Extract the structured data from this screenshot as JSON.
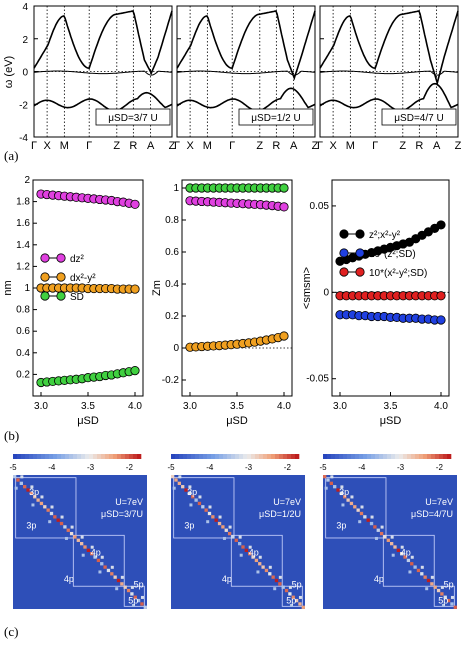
{
  "panel_labels": {
    "a": "(a)",
    "b": "(b)",
    "c": "(c)"
  },
  "row_a": {
    "y_axis_label": "ω (eV)",
    "y_ticks": [
      "4",
      "2",
      "0",
      "-2",
      "-4"
    ],
    "k_labels": [
      "Γ",
      "X",
      "M",
      "Γ",
      "Z",
      "R",
      "A",
      "Z"
    ],
    "panels": [
      {
        "mu_label": "μSD=3/7 U"
      },
      {
        "mu_label": "μSD=1/2 U"
      },
      {
        "mu_label": "μSD=4/7 U"
      }
    ]
  },
  "row_b": {
    "x_axis_label": "μSD",
    "x_ticks": [
      "3.0",
      "3.5",
      "4.0"
    ],
    "panels": [
      {
        "y_axis_label": "nm",
        "y_ticks": [
          "0.2",
          "0.4",
          "0.6",
          "0.8",
          "1",
          "1.2",
          "1.4",
          "1.6",
          "1.8",
          "2"
        ],
        "legend": [
          {
            "label": "dz²",
            "color": "#e040e0"
          },
          {
            "label": "dx²-y²",
            "color": "#f0a020"
          },
          {
            "label": "SD",
            "color": "#40d040"
          }
        ]
      },
      {
        "y_axis_label": "Zm",
        "y_ticks": [
          "-0.2",
          "0",
          "0.2",
          "0.4",
          "0.6",
          "0.8",
          "1"
        ]
      },
      {
        "y_axis_label": "<smsm>",
        "y_ticks": [
          "-0.05",
          "0",
          "0.05"
        ],
        "legend": [
          {
            "label": "z²;x²-y²",
            "color": "#000000"
          },
          {
            "label": "10*(z²;SD)",
            "color": "#2040e0"
          },
          {
            "label": "10*(x²-y²;SD)",
            "color": "#e02020"
          }
        ]
      }
    ]
  },
  "row_c": {
    "colorbar_ticks": [
      "-5",
      "-4",
      "-3",
      "-2"
    ],
    "panels": [
      {
        "u_label": "U=7eV",
        "mu_label": "μSD=3/7U"
      },
      {
        "u_label": "U=7eV",
        "mu_label": "μSD=1/2U"
      },
      {
        "u_label": "U=7eV",
        "mu_label": "μSD=4/7U"
      }
    ],
    "block_labels": [
      "3p",
      "3p",
      "4p",
      "4p",
      "5p",
      "5p"
    ]
  },
  "chart_data": [
    {
      "type": "scatter",
      "title": "",
      "xlabel": "μSD",
      "ylabel": "nm",
      "ylim": [
        0,
        2
      ],
      "xlim": [
        3.0,
        4.0
      ],
      "x": [
        3.0,
        3.0625,
        3.125,
        3.1875,
        3.25,
        3.3125,
        3.375,
        3.4375,
        3.5,
        3.5625,
        3.625,
        3.6875,
        3.75,
        3.8125,
        3.875,
        3.9375,
        4.0
      ],
      "series": [
        {
          "name": "dz²",
          "color": "#e040e0",
          "values": [
            1.87,
            1.865,
            1.86,
            1.855,
            1.85,
            1.845,
            1.84,
            1.835,
            1.83,
            1.825,
            1.82,
            1.815,
            1.81,
            1.8,
            1.795,
            1.785,
            1.775
          ]
        },
        {
          "name": "dx²-y²",
          "color": "#f0a020",
          "values": [
            1.0,
            1.0,
            1.0,
            1.0,
            1.0,
            1.0,
            1.0,
            1.0,
            0.995,
            0.995,
            0.995,
            0.995,
            0.995,
            0.99,
            0.99,
            0.99,
            0.99
          ]
        },
        {
          "name": "SD",
          "color": "#40d040",
          "values": [
            0.125,
            0.13,
            0.135,
            0.14,
            0.145,
            0.15,
            0.155,
            0.16,
            0.17,
            0.175,
            0.18,
            0.19,
            0.195,
            0.205,
            0.215,
            0.225,
            0.235
          ]
        }
      ]
    },
    {
      "type": "scatter",
      "title": "",
      "xlabel": "μSD",
      "ylabel": "Zm",
      "ylim": [
        -0.3,
        1.05
      ],
      "xlim": [
        3.0,
        4.0
      ],
      "x": [
        3.0,
        3.0625,
        3.125,
        3.1875,
        3.25,
        3.3125,
        3.375,
        3.4375,
        3.5,
        3.5625,
        3.625,
        3.6875,
        3.75,
        3.8125,
        3.875,
        3.9375,
        4.0
      ],
      "series": [
        {
          "color": "#40d040",
          "values": [
            1.0,
            1.0,
            1.0,
            1.0,
            1.0,
            1.0,
            1.0,
            1.0,
            1.0,
            1.0,
            1.0,
            1.0,
            1.0,
            1.0,
            1.0,
            1.0,
            1.0
          ]
        },
        {
          "color": "#e040e0",
          "values": [
            0.92,
            0.918,
            0.916,
            0.914,
            0.912,
            0.91,
            0.908,
            0.906,
            0.904,
            0.902,
            0.9,
            0.898,
            0.896,
            0.893,
            0.89,
            0.886,
            0.882
          ]
        },
        {
          "color": "#f0a020",
          "values": [
            0.005,
            0.007,
            0.009,
            0.011,
            0.013,
            0.015,
            0.018,
            0.021,
            0.024,
            0.028,
            0.032,
            0.037,
            0.043,
            0.05,
            0.057,
            0.065,
            0.075
          ]
        }
      ]
    },
    {
      "type": "scatter",
      "title": "",
      "xlabel": "μSD",
      "ylabel": "<smsm>",
      "ylim": [
        -0.06,
        0.065
      ],
      "xlim": [
        3.0,
        4.0
      ],
      "x": [
        3.0,
        3.0625,
        3.125,
        3.1875,
        3.25,
        3.3125,
        3.375,
        3.4375,
        3.5,
        3.5625,
        3.625,
        3.6875,
        3.75,
        3.8125,
        3.875,
        3.9375,
        4.0
      ],
      "series": [
        {
          "name": "z²;x²-y²",
          "color": "#000000",
          "values": [
            0.018,
            0.019,
            0.02,
            0.021,
            0.022,
            0.023,
            0.024,
            0.025,
            0.026,
            0.027,
            0.028,
            0.029,
            0.031,
            0.033,
            0.035,
            0.037,
            0.039
          ]
        },
        {
          "name": "10*(z²;SD)",
          "color": "#2040e0",
          "values": [
            -0.013,
            -0.013,
            -0.013,
            -0.0135,
            -0.0135,
            -0.014,
            -0.014,
            -0.014,
            -0.0145,
            -0.0145,
            -0.015,
            -0.015,
            -0.015,
            -0.0155,
            -0.0155,
            -0.016,
            -0.016
          ]
        },
        {
          "name": "10*(x²-y²;SD)",
          "color": "#e02020",
          "values": [
            -0.002,
            -0.002,
            -0.002,
            -0.002,
            -0.002,
            -0.002,
            -0.002,
            -0.002,
            -0.002,
            -0.002,
            -0.002,
            -0.002,
            -0.002,
            -0.002,
            -0.002,
            -0.002,
            -0.002
          ]
        }
      ]
    }
  ]
}
